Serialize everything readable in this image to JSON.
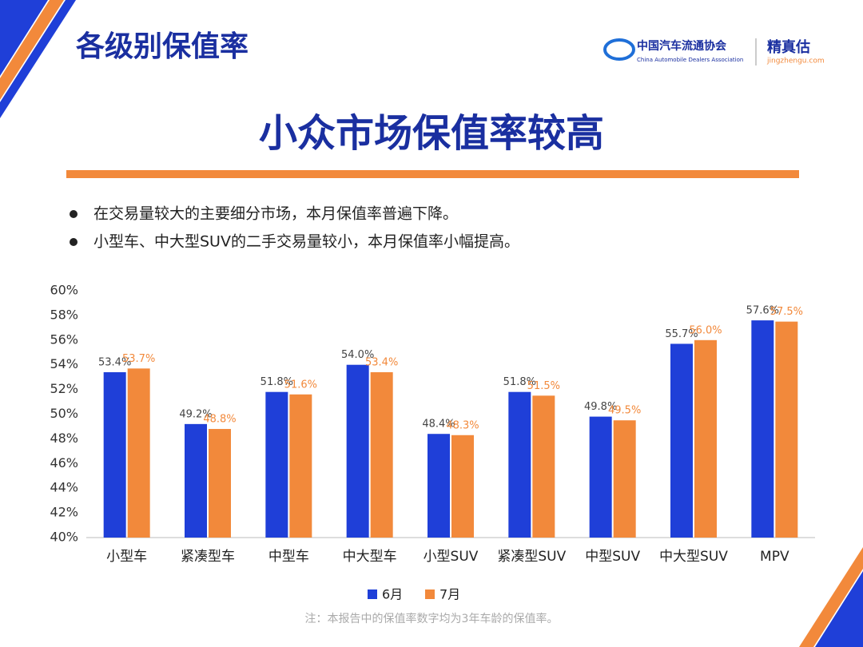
{
  "header": {
    "title": "各级别保值率",
    "logo_cn": "中国汽车流通协会",
    "logo_en": "China Automobile Dealers Association",
    "brand": "精真估",
    "brand_url": "jingzhengu.com"
  },
  "headline": "小众市场保值率较高",
  "bullets": [
    "在交易量较大的主要细分市场，本月保值率普遍下降。",
    "小型车、中大型SUV的二手交易量较小，本月保值率小幅提高。"
  ],
  "chart_data": {
    "type": "bar",
    "categories": [
      "小型车",
      "紧凑型车",
      "中型车",
      "中大型车",
      "小型SUV",
      "紧凑型SUV",
      "中型SUV",
      "中大型SUV",
      "MPV"
    ],
    "series": [
      {
        "name": "6月",
        "color": "#1f3fd8",
        "values": [
          53.4,
          49.2,
          51.8,
          54.0,
          48.4,
          51.8,
          49.8,
          55.7,
          57.6
        ],
        "value_labels": [
          "53.4%",
          "49.2%",
          "51.8%",
          "54.0%",
          "48.4%",
          "51.8%",
          "49.8%",
          "55.7%",
          "57.6%"
        ]
      },
      {
        "name": "7月",
        "color": "#f2893b",
        "values": [
          53.7,
          48.8,
          51.6,
          53.4,
          48.3,
          51.5,
          49.5,
          56.0,
          57.5
        ],
        "value_labels": [
          "53.7%",
          "48.8%",
          "51.6%",
          "53.4%",
          "48.3%",
          "51.5%",
          "49.5%",
          "56.0%",
          "57.5%"
        ]
      }
    ],
    "ylim": [
      40,
      60
    ],
    "yticks": [
      {
        "value": 40,
        "label": "40%"
      },
      {
        "value": 42,
        "label": "42%"
      },
      {
        "value": 44,
        "label": "44%"
      },
      {
        "value": 46,
        "label": "46%"
      },
      {
        "value": 48,
        "label": "48%"
      },
      {
        "value": 50,
        "label": "50%"
      },
      {
        "value": 52,
        "label": "52%"
      },
      {
        "value": 54,
        "label": "54%"
      },
      {
        "value": 56,
        "label": "56%"
      },
      {
        "value": 58,
        "label": "58%"
      },
      {
        "value": 60,
        "label": "60%"
      }
    ],
    "grid": false,
    "legend": "bottom"
  },
  "note": "注：本报告中的保值率数字均为3年车龄的保值率。"
}
